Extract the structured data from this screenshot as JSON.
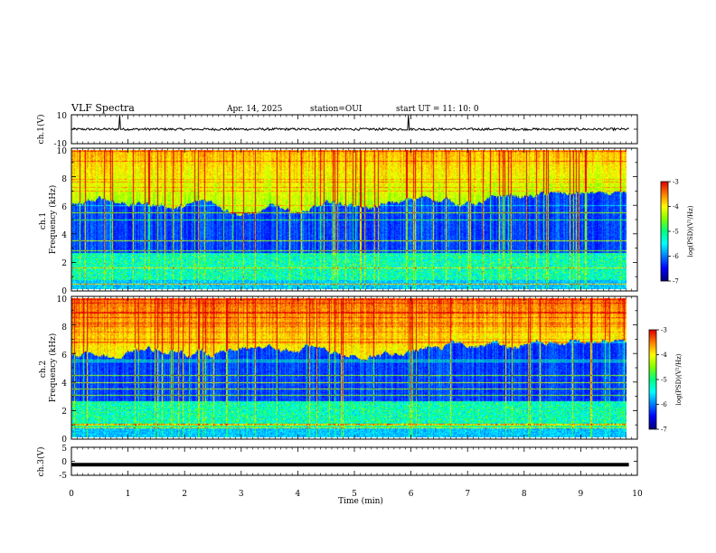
{
  "header": {
    "title": "VLF Spectra",
    "date": "Apr. 14, 2025",
    "station": "station=OUI",
    "start": "start UT =  11: 10: 0"
  },
  "chart_data": [
    {
      "type": "line",
      "name": "ch1-waveform",
      "ylabel": "ch.1(V)",
      "ylim": [
        -10,
        10
      ],
      "yticks": [
        "10",
        "-10"
      ],
      "xlim": [
        0,
        10
      ],
      "baseline": 0,
      "spike_times": [
        0.85,
        5.95
      ],
      "color": "#000000"
    },
    {
      "type": "heatmap",
      "name": "ch1-spectrogram",
      "ylabel": "ch.1\nFrequency (kHz)",
      "ylim": [
        0,
        10
      ],
      "yticks": [
        "0",
        "2",
        "4",
        "6",
        "8",
        "10"
      ],
      "xlim": [
        0,
        9.85
      ],
      "colorbar": {
        "label": "log(PSD)(V²/Hz)",
        "range": [
          -7,
          -3
        ],
        "ticks": [
          "-3",
          "-4",
          "-5",
          "-6",
          "-7"
        ]
      },
      "description_levels": {
        "low_band_max_khz": 0.6,
        "whistler_band_khz": [
          0.6,
          2.4
        ],
        "quiet_band_khz": [
          2.4,
          6.2
        ],
        "hiss_band_khz": [
          6.2,
          10
        ]
      }
    },
    {
      "type": "heatmap",
      "name": "ch2-spectrogram",
      "ylabel": "ch.2\nFrequency (kHz)",
      "ylim": [
        0,
        10
      ],
      "yticks": [
        "0",
        "2",
        "4",
        "6",
        "8",
        "10"
      ],
      "xlim": [
        0,
        9.85
      ],
      "colorbar": {
        "label": "log(PSD)(V²/Hz)",
        "range": [
          -7,
          -3
        ],
        "ticks": [
          "-3",
          "-4",
          "-5",
          "-6",
          "-7"
        ]
      }
    },
    {
      "type": "line",
      "name": "ch3-waveform",
      "ylabel": "ch.3(V)",
      "ylim": [
        -5,
        5
      ],
      "yticks": [
        "5",
        "0",
        "-5"
      ],
      "xlim": [
        0,
        10
      ],
      "baseline": -1.2,
      "color": "#000000"
    }
  ],
  "xaxis": {
    "label": "Time (min)",
    "range": [
      0,
      10
    ],
    "ticks": [
      "0",
      "1",
      "2",
      "3",
      "4",
      "5",
      "6",
      "7",
      "8",
      "9",
      "10"
    ]
  },
  "colors": {
    "colormap": [
      "#00007a",
      "#0000ff",
      "#0080ff",
      "#00ffff",
      "#00ff80",
      "#80ff00",
      "#ffff00",
      "#ff8000",
      "#e00000",
      "#ffffff"
    ]
  }
}
